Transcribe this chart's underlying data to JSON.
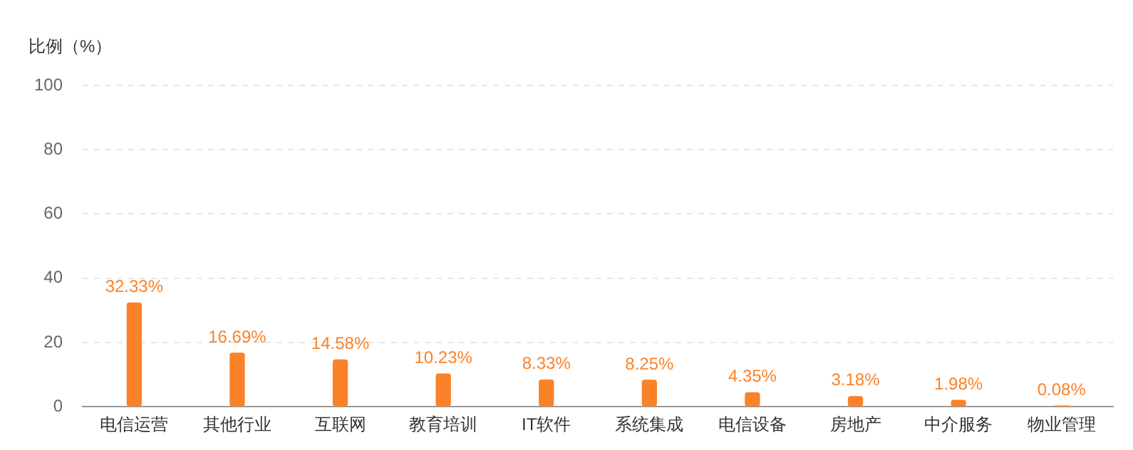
{
  "chart_data": {
    "type": "bar",
    "ylabel": "比例（%）",
    "categories": [
      "电信运营",
      "其他行业",
      "互联网",
      "教育培训",
      "IT软件",
      "系统集成",
      "电信设备",
      "房地产",
      "中介服务",
      "物业管理"
    ],
    "values": [
      32.33,
      16.69,
      14.58,
      10.23,
      8.33,
      8.25,
      4.35,
      3.18,
      1.98,
      0.08
    ],
    "value_labels": [
      "32.33%",
      "16.69%",
      "14.58%",
      "10.23%",
      "8.33%",
      "8.25%",
      "4.35%",
      "3.18%",
      "1.98%",
      "0.08%"
    ],
    "color": "#fa8229",
    "ylim": [
      0,
      100
    ],
    "yticks": [
      0,
      20,
      40,
      60,
      80,
      100
    ],
    "grid": "y",
    "legend": false
  }
}
